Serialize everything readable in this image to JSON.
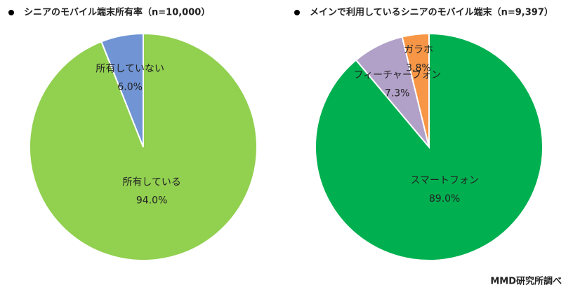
{
  "chart_data": [
    {
      "type": "pie",
      "title": "シニアのモバイル端末所有率（n=10,000）",
      "categories": [
        "所有している",
        "所有していない"
      ],
      "values": [
        94.0,
        6.0
      ],
      "value_labels": [
        "94.0%",
        "6.0%"
      ],
      "colors": [
        "#92d050",
        "#7094d4"
      ]
    },
    {
      "type": "pie",
      "title": "メインで利用しているシニアのモバイル端末（n=9,397）",
      "categories": [
        "スマートフォン",
        "フィーチャーフォン",
        "ガラホ"
      ],
      "values": [
        89.0,
        7.3,
        3.8
      ],
      "value_labels": [
        "89.0%",
        "7.3%",
        "3.8%"
      ],
      "colors": [
        "#00b050",
        "#b1a0c7",
        "#f79646"
      ]
    }
  ],
  "source": "MMD研究所調べ"
}
